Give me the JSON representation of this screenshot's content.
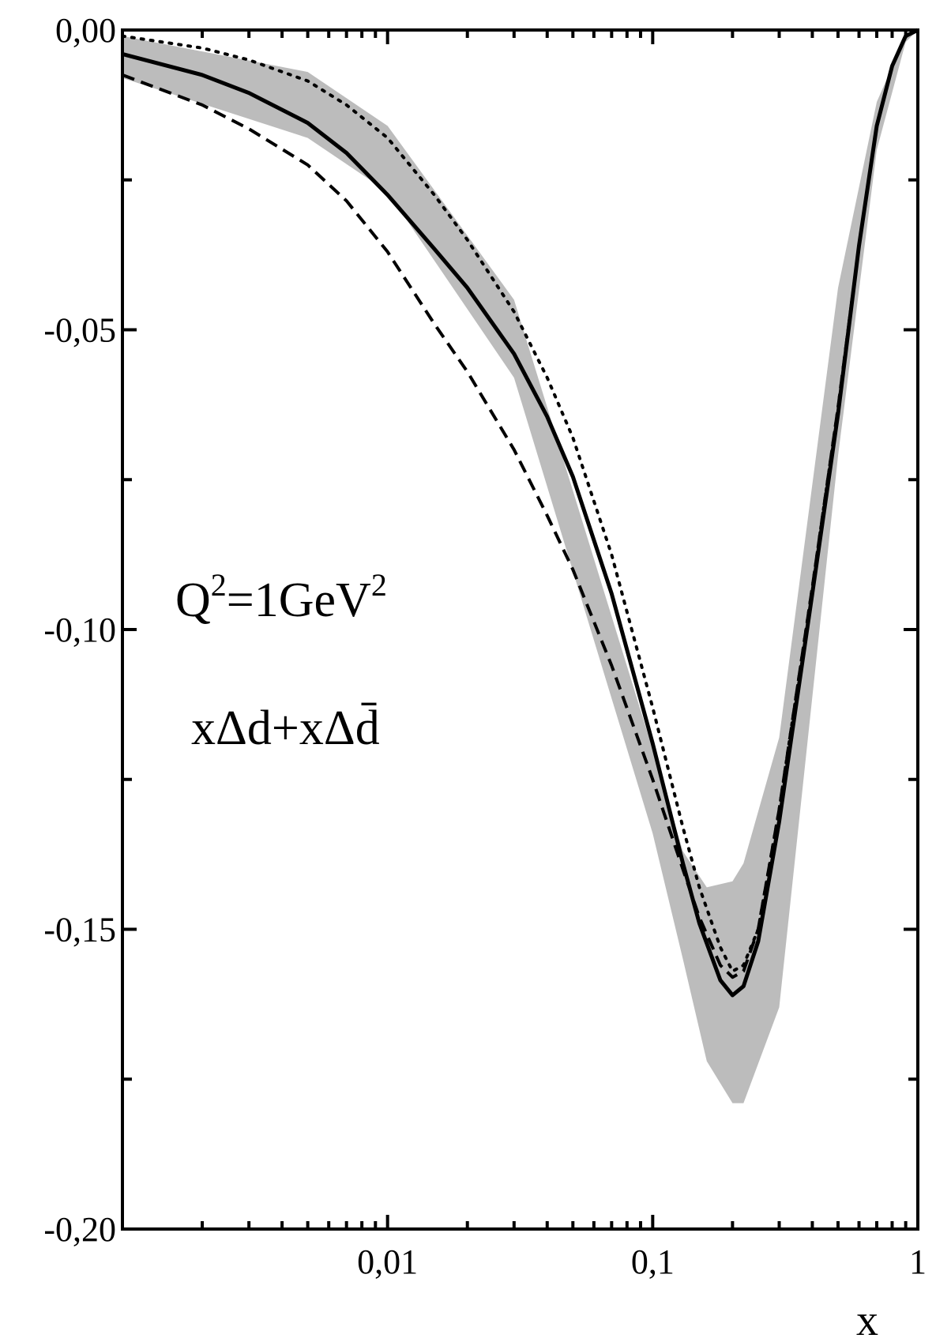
{
  "chart_data": {
    "type": "line",
    "xscale": "log",
    "xlim": [
      0.001,
      1
    ],
    "ylim": [
      -0.2,
      0
    ],
    "xlabel": "x",
    "ylabel": "",
    "xtick_labels": [
      {
        "value": 0.01,
        "label": "0,01"
      },
      {
        "value": 0.1,
        "label": "0,1"
      },
      {
        "value": 1,
        "label": "1"
      }
    ],
    "ytick_labels": [
      {
        "value": 0,
        "label": "0,00"
      },
      {
        "value": -0.05,
        "label": "-0,05"
      },
      {
        "value": -0.1,
        "label": "-0,10"
      },
      {
        "value": -0.15,
        "label": "-0,15"
      },
      {
        "value": -0.2,
        "label": "-0,20"
      }
    ],
    "annotations": {
      "scale": "Q²=1GeV²",
      "scale_parts": {
        "q": "Q",
        "q_exp": "2",
        "mid": "=1GeV",
        "unit_exp": "2"
      },
      "quantity": "xΔd+xΔd̄"
    },
    "band": {
      "color": "#bcbcbc",
      "x": [
        0.001,
        0.005,
        0.01,
        0.03,
        0.1,
        0.13,
        0.16,
        0.2,
        0.22,
        0.3,
        0.5,
        0.7,
        0.9,
        1.0
      ],
      "upper": [
        -0.001,
        -0.007,
        -0.016,
        -0.045,
        -0.12,
        -0.137,
        -0.143,
        -0.142,
        -0.139,
        -0.118,
        -0.043,
        -0.012,
        -0.001,
        0.0
      ],
      "lower": [
        -0.008,
        -0.018,
        -0.027,
        -0.058,
        -0.134,
        -0.155,
        -0.172,
        -0.179,
        -0.179,
        -0.163,
        -0.071,
        -0.02,
        -0.002,
        0.0
      ]
    },
    "series": [
      {
        "style": "solid",
        "color": "#000000",
        "x": [
          0.001,
          0.002,
          0.003,
          0.005,
          0.007,
          0.01,
          0.015,
          0.02,
          0.03,
          0.04,
          0.05,
          0.07,
          0.1,
          0.13,
          0.15,
          0.18,
          0.2,
          0.22,
          0.25,
          0.3,
          0.4,
          0.5,
          0.6,
          0.7,
          0.8,
          0.9,
          1.0
        ],
        "y": [
          -0.004,
          -0.0075,
          -0.0105,
          -0.0155,
          -0.0205,
          -0.0275,
          -0.0365,
          -0.043,
          -0.054,
          -0.0645,
          -0.0745,
          -0.094,
          -0.119,
          -0.139,
          -0.149,
          -0.1585,
          -0.161,
          -0.1595,
          -0.152,
          -0.132,
          -0.094,
          -0.064,
          -0.036,
          -0.016,
          -0.006,
          -0.001,
          0.0
        ]
      },
      {
        "style": "dashed",
        "color": "#000000",
        "x": [
          0.001,
          0.002,
          0.003,
          0.005,
          0.007,
          0.01,
          0.015,
          0.02,
          0.03,
          0.04,
          0.05,
          0.07,
          0.1,
          0.13,
          0.15,
          0.18,
          0.2,
          0.22,
          0.25,
          0.3,
          0.4,
          0.5,
          0.6,
          0.7,
          0.8,
          0.9,
          1.0
        ],
        "y": [
          -0.0075,
          -0.0125,
          -0.0165,
          -0.0225,
          -0.0285,
          -0.037,
          -0.049,
          -0.057,
          -0.07,
          -0.081,
          -0.09,
          -0.106,
          -0.125,
          -0.14,
          -0.148,
          -0.156,
          -0.158,
          -0.157,
          -0.15,
          -0.13,
          -0.093,
          -0.063,
          -0.036,
          -0.016,
          -0.006,
          -0.001,
          0.0
        ]
      },
      {
        "style": "dotted",
        "color": "#000000",
        "x": [
          0.001,
          0.002,
          0.003,
          0.005,
          0.007,
          0.01,
          0.015,
          0.02,
          0.03,
          0.04,
          0.05,
          0.07,
          0.1,
          0.13,
          0.15,
          0.18,
          0.2,
          0.22,
          0.25,
          0.3,
          0.4,
          0.5,
          0.6,
          0.7,
          0.8,
          0.9,
          1.0
        ],
        "y": [
          -0.001,
          -0.003,
          -0.005,
          -0.0085,
          -0.0125,
          -0.018,
          -0.0275,
          -0.035,
          -0.047,
          -0.058,
          -0.068,
          -0.0875,
          -0.113,
          -0.133,
          -0.143,
          -0.153,
          -0.157,
          -0.156,
          -0.15,
          -0.13,
          -0.093,
          -0.063,
          -0.036,
          -0.016,
          -0.006,
          -0.001,
          0.0
        ]
      }
    ]
  }
}
